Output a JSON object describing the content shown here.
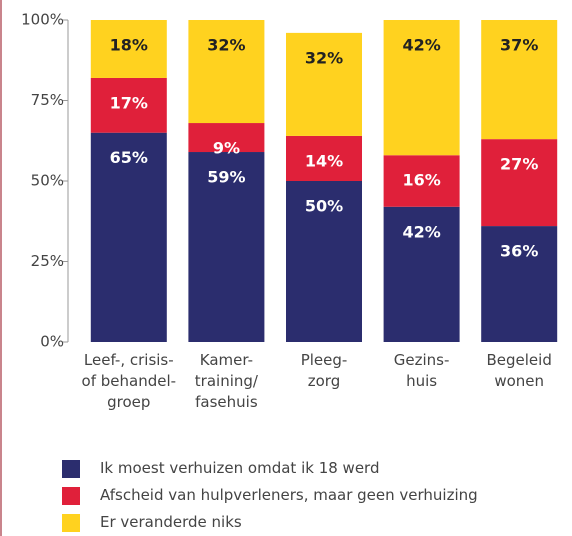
{
  "chart_data": {
    "type": "stacked_bar",
    "categories": [
      "Leef-, crisis-\nof behandel-\ngroep",
      "Kamer-\ntraining/\nfasehuis",
      "Pleeg-\nzorg",
      "Gezins-\nhuis",
      "Begeleid\nwonen"
    ],
    "series": [
      {
        "name": "Ik moest verhuizen omdat ik 18 werd",
        "color": "#2b2d6e",
        "values": [
          65,
          59,
          50,
          42,
          36
        ],
        "value_labels": [
          "65%",
          "59%",
          "50%",
          "42%",
          "36%"
        ]
      },
      {
        "name": "Afscheid van hulpverleners, maar geen verhuizing",
        "color": "#e0203a",
        "values": [
          17,
          9,
          14,
          16,
          27
        ],
        "value_labels": [
          "17%",
          "9%",
          "14%",
          "16%",
          "27%"
        ]
      },
      {
        "name": "Er veranderde niks",
        "color": "#ffd21f",
        "values": [
          18,
          32,
          32,
          42,
          37
        ],
        "value_labels": [
          "18%",
          "32%",
          "32%",
          "42%",
          "37%"
        ]
      }
    ],
    "ylim": [
      0,
      100
    ],
    "yticks": [
      {
        "value": 0,
        "label": "0%"
      },
      {
        "value": 25,
        "label": "25%"
      },
      {
        "value": 50,
        "label": "50%"
      },
      {
        "value": 75,
        "label": "75%"
      },
      {
        "value": 100,
        "label": "100%"
      }
    ],
    "legend": "bottom"
  }
}
